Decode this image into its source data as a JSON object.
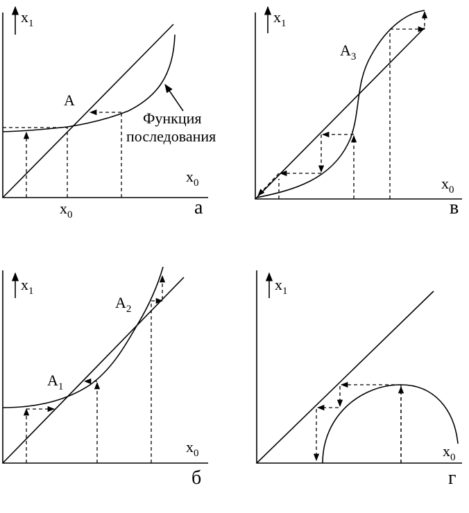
{
  "panels": [
    {
      "letter": "а",
      "y_axis": {
        "base": "x",
        "sub": "1"
      },
      "x_axis": {
        "base": "x",
        "sub": "0"
      },
      "point_x": {
        "base": "x",
        "sub": "0"
      },
      "point": {
        "base": "A"
      },
      "curve_label": [
        "Функция",
        "последования"
      ]
    },
    {
      "letter": "в",
      "y_axis": {
        "base": "x",
        "sub": "1"
      },
      "x_axis": {
        "base": "x",
        "sub": "0"
      },
      "point": {
        "base": "A",
        "sub": "3"
      }
    },
    {
      "letter": "б",
      "y_axis": {
        "base": "x",
        "sub": "1"
      },
      "x_axis": {
        "base": "x",
        "sub": "0"
      },
      "points": [
        {
          "base": "A",
          "sub": "1"
        },
        {
          "base": "A",
          "sub": "2"
        }
      ]
    },
    {
      "letter": "г",
      "y_axis": {
        "base": "x",
        "sub": "1"
      },
      "x_axis": {
        "base": "x",
        "sub": "0"
      }
    }
  ]
}
